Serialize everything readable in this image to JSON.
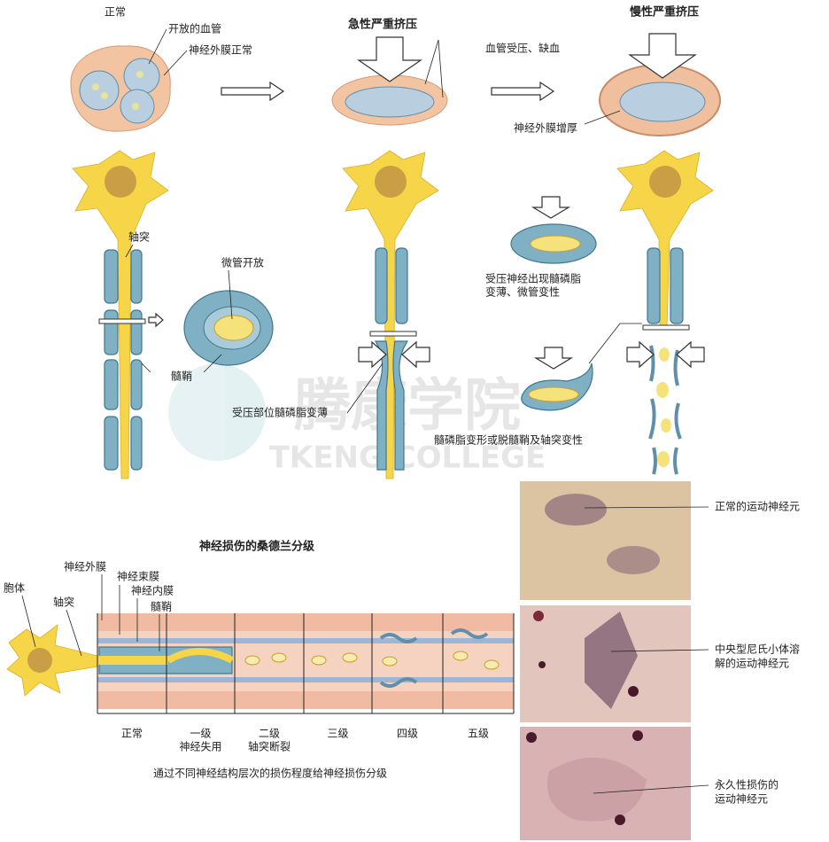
{
  "top": {
    "normal": {
      "title": "正常",
      "vessel": "开放的血管",
      "epineurium": "神经外膜正常"
    },
    "acute": {
      "title": "急性严重挤压",
      "note": "血管受压、缺血"
    },
    "chronic": {
      "title": "慢性严重挤压",
      "note": "神经外膜增厚"
    }
  },
  "neurons": {
    "axon": "轴突",
    "microtubule": "微管开放",
    "myelin": "髓鞘",
    "compressed_note": [
      "受压神经出现髓磷脂",
      "变薄、微管变性"
    ],
    "acute_note": "受压部位髓磷脂变薄",
    "chronic_note": "髓磷脂变形或脱髓鞘及轴突变性"
  },
  "watermark": {
    "cn": "腾康学院",
    "en": "TKENG COLLEGE"
  },
  "sunderland": {
    "title": "神经损伤的桑德兰分级",
    "layers": [
      "神经外膜",
      "神经束膜",
      "神经内膜",
      "髓鞘"
    ],
    "cell_body": "胞体",
    "axon": "轴突",
    "grades": [
      {
        "name": "正常"
      },
      {
        "name": "一级",
        "desc": "神经失用"
      },
      {
        "name": "二级",
        "desc": "轴突断裂"
      },
      {
        "name": "三级"
      },
      {
        "name": "四级"
      },
      {
        "name": "五级"
      }
    ],
    "caption": "通过不同神经结构层次的损伤程度给神经损伤分级"
  },
  "photos": [
    {
      "lines": [
        "正常的运动神经元"
      ]
    },
    {
      "lines": [
        "中央型尼氏小体溶",
        "解的运动神经元"
      ]
    },
    {
      "lines": [
        "永久性损伤的",
        "运动神经元"
      ]
    }
  ]
}
